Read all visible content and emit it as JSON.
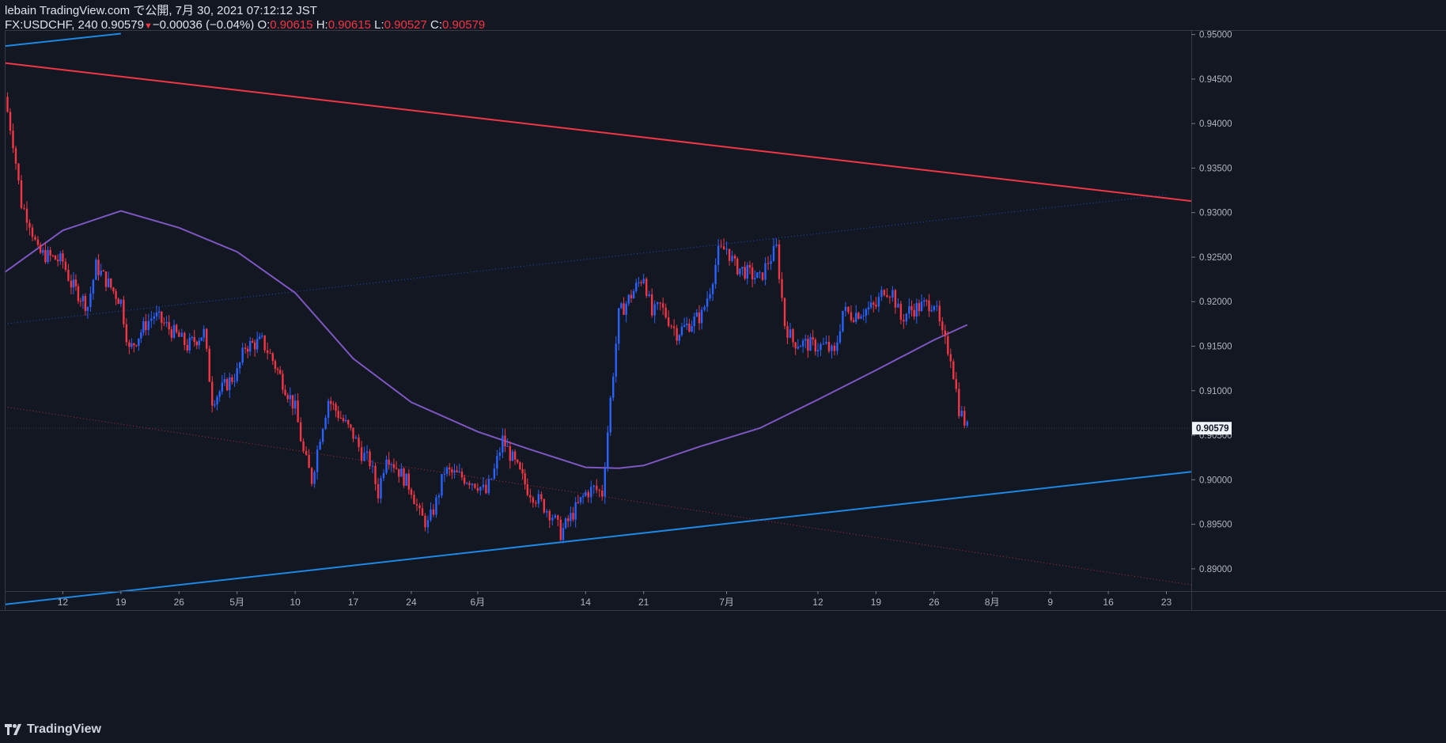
{
  "header": {
    "publish_line": "lebain TradingView.com で公開, 7月 30, 2021 07:12:12 JST",
    "symbol": "FX:USDCHF, 240",
    "last": "0.90579",
    "change": "−0.00036 (−0.04%)",
    "o_label": "O:",
    "o_value": "0.90615",
    "h_label": "H:",
    "h_value": "0.90615",
    "l_label": "L:",
    "l_value": "0.90527",
    "c_label": "C:",
    "c_value": "0.90579"
  },
  "watermark": {
    "text": "TradingView",
    "icon": "tradingview-logo-icon"
  },
  "colors": {
    "background": "#131722",
    "up": "#2962ff",
    "down": "#f23645",
    "ma": "#7e57c2",
    "resistance": "#f23645",
    "support": "#1e88e5"
  },
  "chart_data": {
    "type": "candlestick",
    "symbol": "FX:USDCHF",
    "interval": "240",
    "ylim": [
      0.8875,
      0.9505
    ],
    "y_ticks": [
      "0.95000",
      "0.94500",
      "0.94000",
      "0.93500",
      "0.93000",
      "0.92500",
      "0.92000",
      "0.91500",
      "0.91000",
      "0.90500",
      "0.90000",
      "0.89500",
      "0.89000"
    ],
    "last_price_label": "0.90579",
    "x_ticks": [
      {
        "label": "12",
        "date": "2021-04-12"
      },
      {
        "label": "19",
        "date": "2021-04-19"
      },
      {
        "label": "26",
        "date": "2021-04-26"
      },
      {
        "label": "5月",
        "date": "2021-05-03"
      },
      {
        "label": "10",
        "date": "2021-05-10"
      },
      {
        "label": "17",
        "date": "2021-05-17"
      },
      {
        "label": "24",
        "date": "2021-05-24"
      },
      {
        "label": "6月",
        "date": "2021-06-01"
      },
      {
        "label": "14",
        "date": "2021-06-14"
      },
      {
        "label": "21",
        "date": "2021-06-21"
      },
      {
        "label": "7月",
        "date": "2021-07-01"
      },
      {
        "label": "12",
        "date": "2021-07-12"
      },
      {
        "label": "19",
        "date": "2021-07-19"
      },
      {
        "label": "26",
        "date": "2021-07-26"
      },
      {
        "label": "8月",
        "date": "2021-08-02"
      },
      {
        "label": "9",
        "date": "2021-08-09"
      },
      {
        "label": "16",
        "date": "2021-08-16"
      },
      {
        "label": "23",
        "date": "2021-08-23"
      }
    ],
    "price_path": [
      [
        "2021-04-05",
        0.943
      ],
      [
        "2021-04-06",
        0.938
      ],
      [
        "2021-04-07",
        0.931
      ],
      [
        "2021-04-08",
        0.929
      ],
      [
        "2021-04-09",
        0.9255
      ],
      [
        "2021-04-12",
        0.9245
      ],
      [
        "2021-04-13",
        0.922
      ],
      [
        "2021-04-15",
        0.9195
      ],
      [
        "2021-04-16",
        0.924
      ],
      [
        "2021-04-19",
        0.92
      ],
      [
        "2021-04-20",
        0.9145
      ],
      [
        "2021-04-22",
        0.9175
      ],
      [
        "2021-04-23",
        0.9185
      ],
      [
        "2021-04-26",
        0.916
      ],
      [
        "2021-04-27",
        0.915
      ],
      [
        "2021-04-29",
        0.9165
      ],
      [
        "2021-04-30",
        0.909
      ],
      [
        "2021-05-03",
        0.912
      ],
      [
        "2021-05-04",
        0.915
      ],
      [
        "2021-05-06",
        0.9155
      ],
      [
        "2021-05-07",
        0.914
      ],
      [
        "2021-05-10",
        0.908
      ],
      [
        "2021-05-11",
        0.903
      ],
      [
        "2021-05-12",
        0.9
      ],
      [
        "2021-05-13",
        0.905
      ],
      [
        "2021-05-14",
        0.909
      ],
      [
        "2021-05-17",
        0.905
      ],
      [
        "2021-05-18",
        0.903
      ],
      [
        "2021-05-19",
        0.902
      ],
      [
        "2021-05-20",
        0.8985
      ],
      [
        "2021-05-21",
        0.903
      ],
      [
        "2021-05-24",
        0.899
      ],
      [
        "2021-05-25",
        0.896
      ],
      [
        "2021-05-26",
        0.895
      ],
      [
        "2021-05-27",
        0.8975
      ],
      [
        "2021-05-28",
        0.901
      ],
      [
        "2021-05-31",
        0.9
      ],
      [
        "2021-06-01",
        0.8995
      ],
      [
        "2021-06-02",
        0.8985
      ],
      [
        "2021-06-03",
        0.901
      ],
      [
        "2021-06-04",
        0.9045
      ],
      [
        "2021-06-07",
        0.899
      ],
      [
        "2021-06-08",
        0.898
      ],
      [
        "2021-06-09",
        0.897
      ],
      [
        "2021-06-10",
        0.896
      ],
      [
        "2021-06-11",
        0.894
      ],
      [
        "2021-06-14",
        0.8985
      ],
      [
        "2021-06-15",
        0.899
      ],
      [
        "2021-06-16",
        0.8985
      ],
      [
        "2021-06-17",
        0.909
      ],
      [
        "2021-06-18",
        0.9185
      ],
      [
        "2021-06-21",
        0.923
      ],
      [
        "2021-06-22",
        0.9185
      ],
      [
        "2021-06-23",
        0.9195
      ],
      [
        "2021-06-24",
        0.918
      ],
      [
        "2021-06-25",
        0.9165
      ],
      [
        "2021-06-28",
        0.9185
      ],
      [
        "2021-06-29",
        0.9215
      ],
      [
        "2021-06-30",
        0.9255
      ],
      [
        "2021-07-01",
        0.926
      ],
      [
        "2021-07-02",
        0.924
      ],
      [
        "2021-07-05",
        0.9225
      ],
      [
        "2021-07-06",
        0.9245
      ],
      [
        "2021-07-07",
        0.926
      ],
      [
        "2021-07-08",
        0.9175
      ],
      [
        "2021-07-09",
        0.9155
      ],
      [
        "2021-07-12",
        0.915
      ],
      [
        "2021-07-13",
        0.915
      ],
      [
        "2021-07-14",
        0.914
      ],
      [
        "2021-07-15",
        0.919
      ],
      [
        "2021-07-16",
        0.9185
      ],
      [
        "2021-07-19",
        0.9195
      ],
      [
        "2021-07-20",
        0.9215
      ],
      [
        "2021-07-21",
        0.921
      ],
      [
        "2021-07-22",
        0.918
      ],
      [
        "2021-07-23",
        0.919
      ],
      [
        "2021-07-26",
        0.92
      ],
      [
        "2021-07-27",
        0.916
      ],
      [
        "2021-07-28",
        0.914
      ],
      [
        "2021-07-29",
        0.908
      ],
      [
        "2021-07-30",
        0.90579
      ]
    ],
    "moving_average": [
      [
        "2021-04-05",
        0.9233
      ],
      [
        "2021-04-12",
        0.928
      ],
      [
        "2021-04-19",
        0.9302
      ],
      [
        "2021-04-26",
        0.9283
      ],
      [
        "2021-05-03",
        0.9256
      ],
      [
        "2021-05-10",
        0.921
      ],
      [
        "2021-05-17",
        0.9136
      ],
      [
        "2021-05-24",
        0.9087
      ],
      [
        "2021-06-01",
        0.9054
      ],
      [
        "2021-06-07",
        0.9035
      ],
      [
        "2021-06-14",
        0.9014
      ],
      [
        "2021-06-18",
        0.9013
      ],
      [
        "2021-06-21",
        0.9016
      ],
      [
        "2021-06-28",
        0.9038
      ],
      [
        "2021-07-05",
        0.9058
      ],
      [
        "2021-07-12",
        0.909
      ],
      [
        "2021-07-19",
        0.9123
      ],
      [
        "2021-07-26",
        0.9157
      ],
      [
        "2021-07-30",
        0.9174
      ]
    ],
    "trendlines": [
      {
        "name": "resistance",
        "style": "solid",
        "color": "#f23645",
        "points": [
          [
            "2021-04-05",
            0.9468
          ],
          [
            "2021-08-26",
            0.9313
          ]
        ]
      },
      {
        "name": "support-upper",
        "style": "solid",
        "color": "#1e88e5",
        "points": [
          [
            "2021-04-05",
            0.9487
          ],
          [
            "2021-04-19",
            0.9501
          ]
        ]
      },
      {
        "name": "support-lower",
        "style": "solid",
        "color": "#1e88e5",
        "points": [
          [
            "2021-04-05",
            0.886
          ],
          [
            "2021-08-26",
            0.9009
          ]
        ]
      },
      {
        "name": "channel-top",
        "style": "dotted",
        "color": "#2962ff",
        "points": [
          [
            "2021-04-05",
            0.9175
          ],
          [
            "2021-08-23",
            0.932
          ]
        ]
      },
      {
        "name": "channel-bottom",
        "style": "dotted",
        "color": "#f23645",
        "points": [
          [
            "2021-04-05",
            0.9082
          ],
          [
            "2021-08-26",
            0.8882
          ]
        ]
      }
    ]
  }
}
